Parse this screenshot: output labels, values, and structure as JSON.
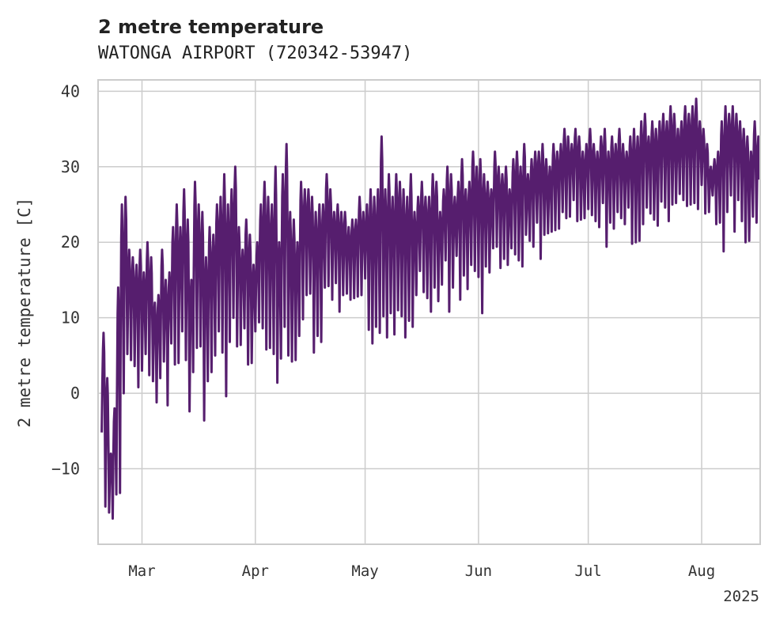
{
  "chart_data": {
    "type": "line",
    "title": "2 metre temperature",
    "subtitle": "WATONGA AIRPORT (720342-53947)",
    "xlabel": "",
    "ylabel": "2 metre temperature [C]",
    "x_ticks": [
      {
        "date": "2025-03-01",
        "label": "Mar"
      },
      {
        "date": "2025-04-01",
        "label": "Apr"
      },
      {
        "date": "2025-05-01",
        "label": "May"
      },
      {
        "date": "2025-06-01",
        "label": "Jun"
      },
      {
        "date": "2025-07-01",
        "label": "Jul"
      },
      {
        "date": "2025-08-01",
        "label": "Aug"
      }
    ],
    "x_year_label": "2025",
    "xlim": [
      "2025-02-17",
      "2025-08-17"
    ],
    "ylim": [
      -20,
      41.5
    ],
    "y_ticks": [
      -10,
      0,
      10,
      20,
      30,
      40
    ],
    "grid": true,
    "line_color": "#561E6E",
    "series": [
      {
        "x": [
          "2025-02-18",
          "2025-02-19",
          "2025-02-20",
          "2025-02-21",
          "2025-02-22",
          "2025-02-23",
          "2025-02-24",
          "2025-02-25",
          "2025-02-26",
          "2025-02-27",
          "2025-02-28",
          "2025-03-01",
          "2025-03-02",
          "2025-03-03",
          "2025-03-04",
          "2025-03-05",
          "2025-03-06",
          "2025-03-07",
          "2025-03-08",
          "2025-03-09",
          "2025-03-10",
          "2025-03-11",
          "2025-03-12",
          "2025-03-13",
          "2025-03-14",
          "2025-03-15",
          "2025-03-16",
          "2025-03-17",
          "2025-03-18",
          "2025-03-19",
          "2025-03-20",
          "2025-03-21",
          "2025-03-22",
          "2025-03-23",
          "2025-03-24",
          "2025-03-25",
          "2025-03-26",
          "2025-03-27",
          "2025-03-28",
          "2025-03-29",
          "2025-03-30",
          "2025-03-31",
          "2025-04-01",
          "2025-04-02",
          "2025-04-03",
          "2025-04-04",
          "2025-04-05",
          "2025-04-06",
          "2025-04-07",
          "2025-04-08",
          "2025-04-09",
          "2025-04-10",
          "2025-04-11",
          "2025-04-12",
          "2025-04-13",
          "2025-04-14",
          "2025-04-15",
          "2025-04-16",
          "2025-04-17",
          "2025-04-18",
          "2025-04-19",
          "2025-04-20",
          "2025-04-21",
          "2025-04-22",
          "2025-04-23",
          "2025-04-24",
          "2025-04-25",
          "2025-04-26",
          "2025-04-27",
          "2025-04-28",
          "2025-04-29",
          "2025-04-30",
          "2025-05-01",
          "2025-05-02",
          "2025-05-03",
          "2025-05-04",
          "2025-05-05",
          "2025-05-06",
          "2025-05-07",
          "2025-05-08",
          "2025-05-09",
          "2025-05-10",
          "2025-05-11",
          "2025-05-12",
          "2025-05-13",
          "2025-05-14",
          "2025-05-15",
          "2025-05-16",
          "2025-05-17",
          "2025-05-18",
          "2025-05-19",
          "2025-05-20",
          "2025-05-21",
          "2025-05-22",
          "2025-05-23",
          "2025-05-24",
          "2025-05-25",
          "2025-05-26",
          "2025-05-27",
          "2025-05-28",
          "2025-05-29",
          "2025-05-30",
          "2025-05-31",
          "2025-06-01",
          "2025-06-02",
          "2025-06-03",
          "2025-06-04",
          "2025-06-05",
          "2025-06-06",
          "2025-06-07",
          "2025-06-08",
          "2025-06-09",
          "2025-06-10",
          "2025-06-11",
          "2025-06-12",
          "2025-06-13",
          "2025-06-14",
          "2025-06-15",
          "2025-06-16",
          "2025-06-17",
          "2025-06-18",
          "2025-06-19",
          "2025-06-20",
          "2025-06-21",
          "2025-06-22",
          "2025-06-23",
          "2025-06-24",
          "2025-06-25",
          "2025-06-26",
          "2025-06-27",
          "2025-06-28",
          "2025-06-29",
          "2025-06-30",
          "2025-07-01",
          "2025-07-02",
          "2025-07-03",
          "2025-07-04",
          "2025-07-05",
          "2025-07-06",
          "2025-07-07",
          "2025-07-08",
          "2025-07-09",
          "2025-07-10",
          "2025-07-11",
          "2025-07-12",
          "2025-07-13",
          "2025-07-14",
          "2025-07-15",
          "2025-07-16",
          "2025-07-17",
          "2025-07-18",
          "2025-07-19",
          "2025-07-20",
          "2025-07-21",
          "2025-07-22",
          "2025-07-23",
          "2025-07-24",
          "2025-07-25",
          "2025-07-26",
          "2025-07-27",
          "2025-07-28",
          "2025-07-29",
          "2025-07-30",
          "2025-07-31",
          "2025-08-01",
          "2025-08-02",
          "2025-08-03",
          "2025-08-04",
          "2025-08-05",
          "2025-08-06",
          "2025-08-07",
          "2025-08-08",
          "2025-08-09",
          "2025-08-10",
          "2025-08-11",
          "2025-08-12",
          "2025-08-13",
          "2025-08-14",
          "2025-08-15",
          "2025-08-16"
        ],
        "min": [
          -4,
          -15,
          -17,
          -16,
          -14,
          -12,
          0,
          4,
          5,
          3,
          2,
          3,
          4,
          3,
          1,
          0,
          2,
          3,
          -1,
          6,
          5,
          4,
          7,
          5,
          -3,
          4,
          6,
          5,
          -3,
          1,
          4,
          5,
          7,
          6,
          -1,
          8,
          10,
          5,
          7,
          8,
          5,
          4,
          7,
          10,
          8,
          7,
          6,
          4,
          2,
          4,
          10,
          5,
          3,
          5,
          7,
          11,
          13,
          12,
          6,
          7,
          8,
          14,
          13,
          13,
          14,
          12,
          13,
          12,
          13,
          12,
          14,
          13,
          14,
          9,
          6,
          10,
          8,
          9,
          8,
          10,
          9,
          11,
          9,
          8,
          9,
          10,
          13,
          15,
          14,
          12,
          12,
          14,
          11,
          15,
          17,
          12,
          14,
          17,
          13,
          15,
          15,
          17,
          15,
          16,
          10,
          18,
          16,
          18,
          20,
          16,
          19,
          17,
          18,
          19,
          17,
          18,
          21,
          19,
          20,
          22,
          19,
          21,
          20,
          22,
          21,
          23,
          24,
          22,
          24,
          25,
          24,
          23,
          22,
          25,
          23,
          24,
          22,
          24,
          20,
          22,
          23,
          24,
          22,
          23,
          24,
          21,
          20,
          19,
          23,
          24,
          25,
          23,
          21,
          26,
          24,
          24,
          25,
          24,
          27,
          25,
          26,
          25,
          24,
          25,
          27,
          25,
          24,
          25,
          23,
          22,
          20,
          24,
          25,
          22,
          25,
          24,
          20,
          19,
          24,
          22
        ],
        "max": [
          8,
          2,
          -8,
          -2,
          14,
          25,
          26,
          19,
          18,
          17,
          19,
          16,
          20,
          18,
          12,
          13,
          19,
          15,
          16,
          22,
          25,
          22,
          27,
          23,
          15,
          28,
          25,
          24,
          18,
          22,
          21,
          25,
          26,
          29,
          25,
          27,
          30,
          22,
          19,
          23,
          21,
          17,
          20,
          25,
          28,
          26,
          25,
          30,
          20,
          29,
          33,
          24,
          23,
          20,
          28,
          27,
          27,
          26,
          24,
          25,
          25,
          29,
          27,
          24,
          25,
          24,
          24,
          22,
          23,
          23,
          26,
          24,
          25,
          27,
          26,
          27,
          34,
          27,
          29,
          26,
          29,
          28,
          27,
          26,
          29,
          24,
          26,
          28,
          26,
          26,
          29,
          28,
          24,
          27,
          30,
          29,
          26,
          28,
          31,
          27,
          28,
          32,
          30,
          31,
          29,
          28,
          27,
          32,
          30,
          29,
          30,
          27,
          31,
          32,
          30,
          33,
          29,
          31,
          32,
          32,
          33,
          31,
          30,
          33,
          32,
          33,
          35,
          34,
          33,
          35,
          34,
          32,
          33,
          35,
          33,
          32,
          34,
          35,
          32,
          34,
          33,
          35,
          33,
          32,
          34,
          35,
          34,
          36,
          37,
          34,
          36,
          35,
          36,
          37,
          36,
          38,
          37,
          35,
          36,
          38,
          37,
          38,
          39,
          36,
          35,
          33,
          30,
          31,
          32,
          36,
          38,
          37,
          38,
          37,
          36,
          35,
          34,
          32,
          36,
          34
        ]
      }
    ]
  }
}
